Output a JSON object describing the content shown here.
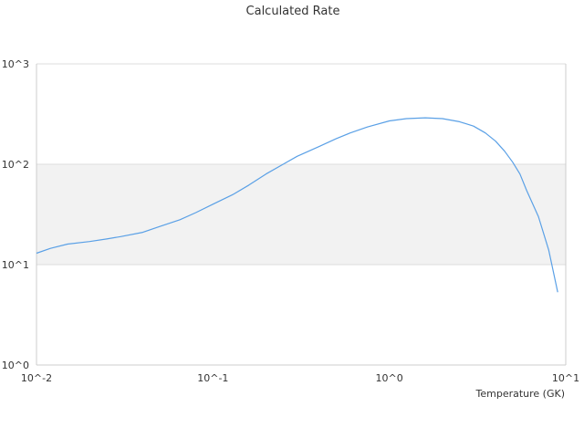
{
  "chart_data": {
    "type": "line",
    "title": "Calculated Rate",
    "xlabel": "Temperature (GK)",
    "ylabel": "",
    "xscale": "log",
    "yscale": "log",
    "xlim": [
      0.01,
      10
    ],
    "ylim": [
      1,
      1000
    ],
    "x_ticks": [
      "10^-2",
      "10^-1",
      "10^0",
      "10^1"
    ],
    "y_ticks": [
      "10^0",
      "10^1",
      "10^2",
      "10^3"
    ],
    "grid": true,
    "alternate_band_color": "#f2f2f2",
    "legend": "none",
    "series": [
      {
        "color": "#5aa0e6",
        "x": [
          0.01,
          0.012,
          0.015,
          0.02,
          0.025,
          0.03,
          0.04,
          0.05,
          0.065,
          0.08,
          0.1,
          0.13,
          0.16,
          0.2,
          0.25,
          0.3,
          0.4,
          0.5,
          0.6,
          0.75,
          1.0,
          1.25,
          1.6,
          2.0,
          2.5,
          3.0,
          3.5,
          4.0,
          4.5,
          5.0,
          5.5,
          6.0,
          7.0,
          8.0,
          9.0
        ],
        "y": [
          13,
          14.5,
          16,
          17,
          18,
          19,
          21,
          24,
          28,
          33,
          40,
          50,
          62,
          80,
          100,
          120,
          150,
          180,
          205,
          235,
          270,
          285,
          290,
          285,
          265,
          240,
          205,
          170,
          135,
          105,
          80,
          55,
          30,
          14,
          5.3
        ]
      }
    ]
  }
}
